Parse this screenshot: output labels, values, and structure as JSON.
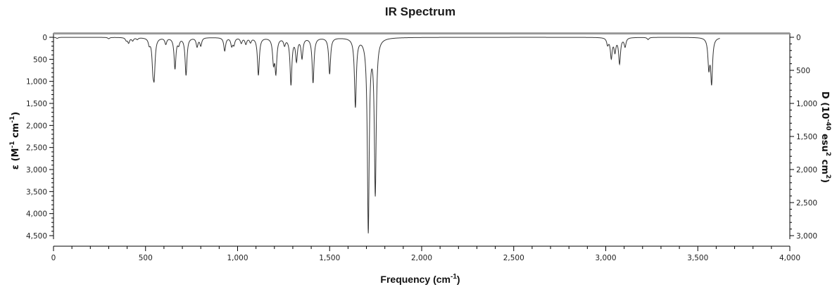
{
  "chart_data": {
    "type": "line",
    "title": "IR Spectrum",
    "xlabel": "Frequency (cm",
    "xlabel_sup": "-1",
    "xlabel_tail": ")",
    "ylabel_left": "ε (M",
    "ylabel_left_sup1": "-1",
    "ylabel_left_mid": " cm",
    "ylabel_left_sup2": "-1",
    "ylabel_left_tail": ")",
    "ylabel_right": "D (10",
    "ylabel_right_sup1": "-40",
    "ylabel_right_mid": " esu",
    "ylabel_right_sup2": "2",
    "ylabel_right_mid2": " cm",
    "ylabel_right_sup3": "2",
    "ylabel_right_tail": ")",
    "xlim": [
      0,
      4000
    ],
    "ylim_left": [
      0,
      4500
    ],
    "ylim_right": [
      0,
      3000
    ],
    "y_inverted": true,
    "grid": false,
    "legend": "none",
    "x_tick_labels": [
      "0",
      "500",
      "1,000",
      "1,500",
      "2,000",
      "2,500",
      "3,000",
      "3,500",
      "4,000"
    ],
    "x_tick_values": [
      0,
      500,
      1000,
      1500,
      2000,
      2500,
      3000,
      3500,
      4000
    ],
    "y_left_tick_labels": [
      "0",
      "500",
      "1,000",
      "1,500",
      "2,000",
      "2,500",
      "3,000",
      "3,500",
      "4,000",
      "4,500"
    ],
    "y_left_tick_values": [
      0,
      500,
      1000,
      1500,
      2000,
      2500,
      3000,
      3500,
      4000,
      4500
    ],
    "y_right_tick_labels": [
      "0",
      "500",
      "1,000",
      "1,500",
      "2,000",
      "2,500",
      "3,000"
    ],
    "y_right_tick_values": [
      0,
      500,
      1000,
      1500,
      2000,
      2500,
      3000
    ],
    "x_range_plotted": [
      0,
      3620
    ],
    "series": [
      {
        "peaks": [
          {
            "x": 20,
            "y": 25
          },
          {
            "x": 300,
            "y": 30
          },
          {
            "x": 395,
            "y": 60
          },
          {
            "x": 408,
            "y": 120
          },
          {
            "x": 430,
            "y": 70
          },
          {
            "x": 455,
            "y": 40
          },
          {
            "x": 520,
            "y": 130
          },
          {
            "x": 540,
            "y": 550
          },
          {
            "x": 547,
            "y": 750
          },
          {
            "x": 610,
            "y": 140
          },
          {
            "x": 660,
            "y": 700
          },
          {
            "x": 680,
            "y": 130
          },
          {
            "x": 720,
            "y": 850
          },
          {
            "x": 780,
            "y": 200
          },
          {
            "x": 800,
            "y": 180
          },
          {
            "x": 930,
            "y": 300
          },
          {
            "x": 968,
            "y": 180
          },
          {
            "x": 980,
            "y": 150
          },
          {
            "x": 1020,
            "y": 120
          },
          {
            "x": 1045,
            "y": 140
          },
          {
            "x": 1070,
            "y": 100
          },
          {
            "x": 1113,
            "y": 850
          },
          {
            "x": 1195,
            "y": 520
          },
          {
            "x": 1208,
            "y": 750
          },
          {
            "x": 1255,
            "y": 150
          },
          {
            "x": 1290,
            "y": 1050
          },
          {
            "x": 1320,
            "y": 500
          },
          {
            "x": 1350,
            "y": 450
          },
          {
            "x": 1410,
            "y": 1020
          },
          {
            "x": 1500,
            "y": 820
          },
          {
            "x": 1640,
            "y": 1550
          },
          {
            "x": 1710,
            "y": 4350
          },
          {
            "x": 1748,
            "y": 3500
          },
          {
            "x": 3010,
            "y": 150
          },
          {
            "x": 3030,
            "y": 450
          },
          {
            "x": 3050,
            "y": 300
          },
          {
            "x": 3075,
            "y": 580
          },
          {
            "x": 3105,
            "y": 200
          },
          {
            "x": 3230,
            "y": 50
          },
          {
            "x": 3560,
            "y": 650
          },
          {
            "x": 3575,
            "y": 1000
          }
        ]
      }
    ]
  }
}
